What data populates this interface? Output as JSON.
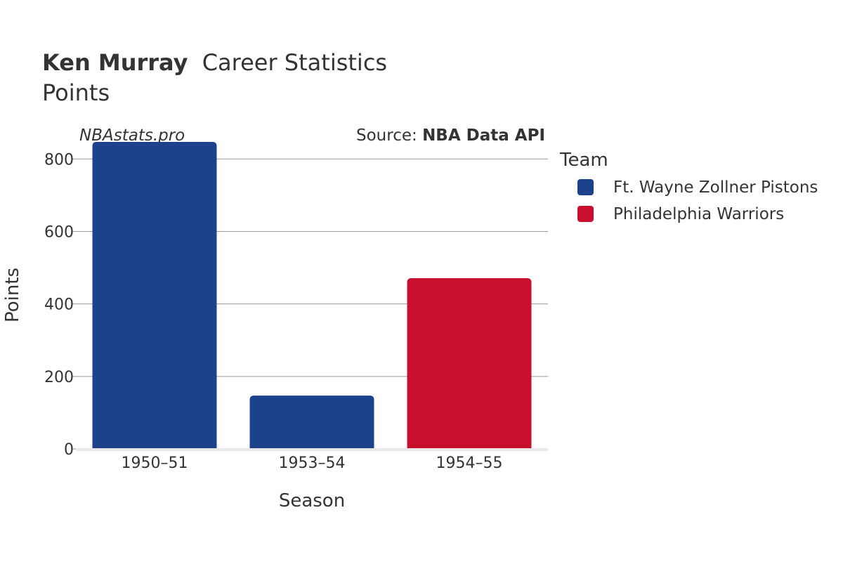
{
  "header": {
    "player_name": "Ken Murray",
    "title_rest": "Career Statistics",
    "subtitle": "Points"
  },
  "watermark": "NBAstats.pro",
  "source": {
    "label": "Source: ",
    "name": "NBA Data API"
  },
  "legend": {
    "title": "Team",
    "items": [
      {
        "label": "Ft. Wayne Zollner Pistons",
        "color": "#1b428a"
      },
      {
        "label": "Philadelphia Warriors",
        "color": "#c8102e"
      }
    ]
  },
  "chart_data": {
    "type": "bar",
    "xlabel": "Season",
    "ylabel": "Points",
    "categories": [
      "1950–51",
      "1953–54",
      "1954–55"
    ],
    "values": [
      847,
      147,
      471
    ],
    "bar_teams": [
      "Ft. Wayne Zollner Pistons",
      "Ft. Wayne Zollner Pistons",
      "Philadelphia Warriors"
    ],
    "ylim": [
      0,
      880
    ],
    "yticks": [
      0,
      200,
      400,
      600,
      800
    ],
    "grid": true,
    "legend_position": "right"
  }
}
